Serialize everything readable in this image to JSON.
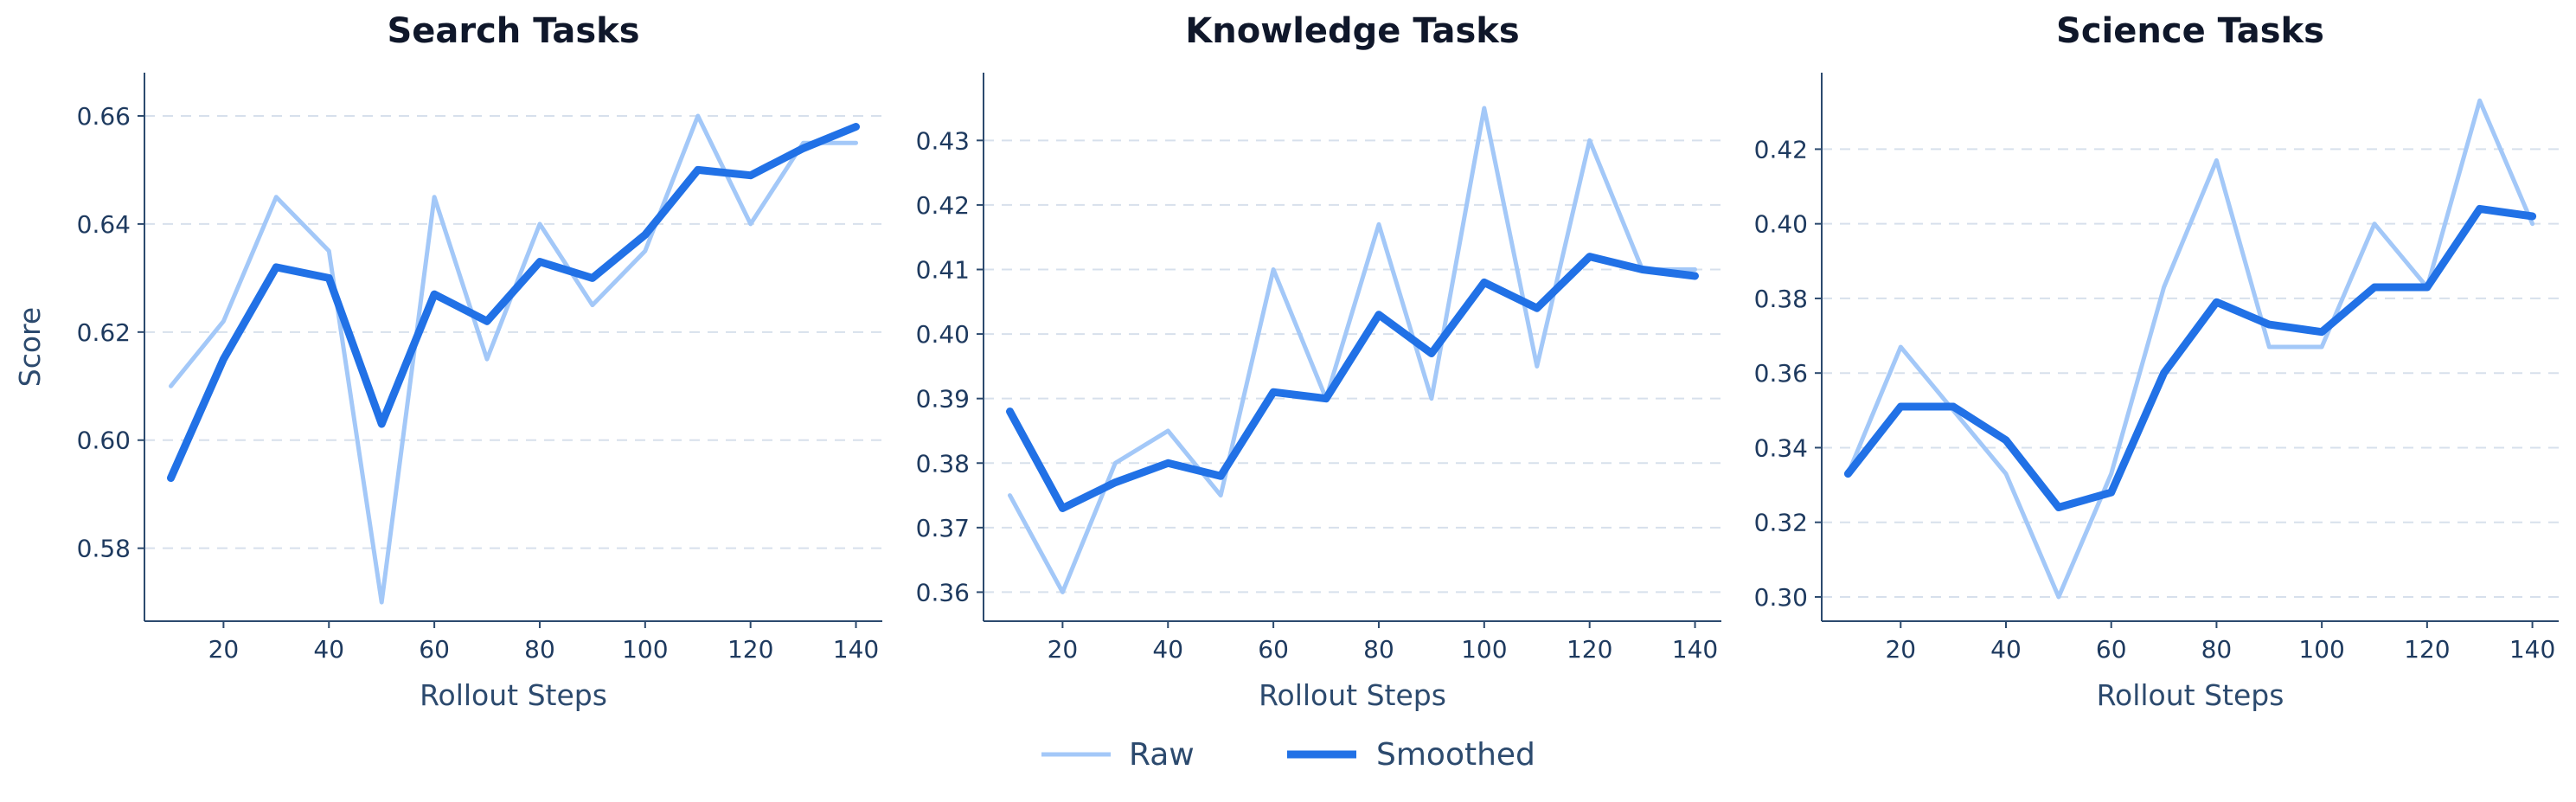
{
  "colors": {
    "raw": "#a3c8f8",
    "smoothed": "#2171e6"
  },
  "legend": {
    "raw_label": "Raw",
    "smoothed_label": "Smoothed"
  },
  "chart_data": [
    {
      "type": "line",
      "title": "Search Tasks",
      "xlabel": "Rollout Steps",
      "ylabel": "Score",
      "grid": "horizontal-dashed",
      "x": [
        10,
        20,
        30,
        40,
        50,
        60,
        70,
        80,
        90,
        100,
        110,
        120,
        130,
        140
      ],
      "xlim": [
        5,
        145
      ],
      "ylim": [
        0.5665,
        0.668
      ],
      "xticks": [
        20,
        40,
        60,
        80,
        100,
        120,
        140
      ],
      "yticks": [
        0.58,
        0.6,
        0.62,
        0.64,
        0.66
      ],
      "ytick_labels": [
        "0.58",
        "0.60",
        "0.62",
        "0.64",
        "0.66"
      ],
      "series": [
        {
          "name": "Raw",
          "values": [
            0.61,
            0.622,
            0.645,
            0.635,
            0.57,
            0.645,
            0.615,
            0.64,
            0.625,
            0.635,
            0.66,
            0.64,
            0.655,
            0.655
          ]
        },
        {
          "name": "Smoothed",
          "values": [
            0.593,
            0.615,
            0.632,
            0.63,
            0.603,
            0.627,
            0.622,
            0.633,
            0.63,
            0.638,
            0.65,
            0.649,
            0.654,
            0.658
          ]
        }
      ]
    },
    {
      "type": "line",
      "title": "Knowledge Tasks",
      "xlabel": "Rollout Steps",
      "ylabel": "",
      "grid": "horizontal-dashed",
      "x": [
        10,
        20,
        30,
        40,
        50,
        60,
        70,
        80,
        90,
        100,
        110,
        120,
        130,
        140
      ],
      "xlim": [
        5,
        145
      ],
      "ylim": [
        0.3555,
        0.4405
      ],
      "xticks": [
        20,
        40,
        60,
        80,
        100,
        120,
        140
      ],
      "yticks": [
        0.36,
        0.37,
        0.38,
        0.39,
        0.4,
        0.41,
        0.42,
        0.43
      ],
      "ytick_labels": [
        "0.36",
        "0.37",
        "0.38",
        "0.39",
        "0.40",
        "0.41",
        "0.42",
        "0.43"
      ],
      "series": [
        {
          "name": "Raw",
          "values": [
            0.375,
            0.36,
            0.38,
            0.385,
            0.375,
            0.41,
            0.39,
            0.417,
            0.39,
            0.435,
            0.395,
            0.43,
            0.41,
            0.41
          ]
        },
        {
          "name": "Smoothed",
          "values": [
            0.388,
            0.373,
            0.377,
            0.38,
            0.378,
            0.391,
            0.39,
            0.403,
            0.397,
            0.408,
            0.404,
            0.412,
            0.41,
            0.409
          ]
        }
      ]
    },
    {
      "type": "line",
      "title": "Science Tasks",
      "xlabel": "Rollout Steps",
      "ylabel": "",
      "grid": "horizontal-dashed",
      "x": [
        10,
        20,
        30,
        40,
        50,
        60,
        70,
        80,
        90,
        100,
        110,
        120,
        130,
        140
      ],
      "xlim": [
        5,
        145
      ],
      "ylim": [
        0.2935,
        0.4405
      ],
      "xticks": [
        20,
        40,
        60,
        80,
        100,
        120,
        140
      ],
      "yticks": [
        0.3,
        0.32,
        0.34,
        0.36,
        0.38,
        0.4,
        0.42
      ],
      "ytick_labels": [
        "0.30",
        "0.32",
        "0.34",
        "0.36",
        "0.38",
        "0.40",
        "0.42"
      ],
      "series": [
        {
          "name": "Raw",
          "values": [
            0.333,
            0.367,
            0.35,
            0.333,
            0.3,
            0.333,
            0.383,
            0.417,
            0.367,
            0.367,
            0.4,
            0.383,
            0.433,
            0.4
          ]
        },
        {
          "name": "Smoothed",
          "values": [
            0.333,
            0.351,
            0.351,
            0.342,
            0.324,
            0.328,
            0.36,
            0.379,
            0.373,
            0.371,
            0.383,
            0.383,
            0.404,
            0.402
          ]
        }
      ]
    }
  ]
}
